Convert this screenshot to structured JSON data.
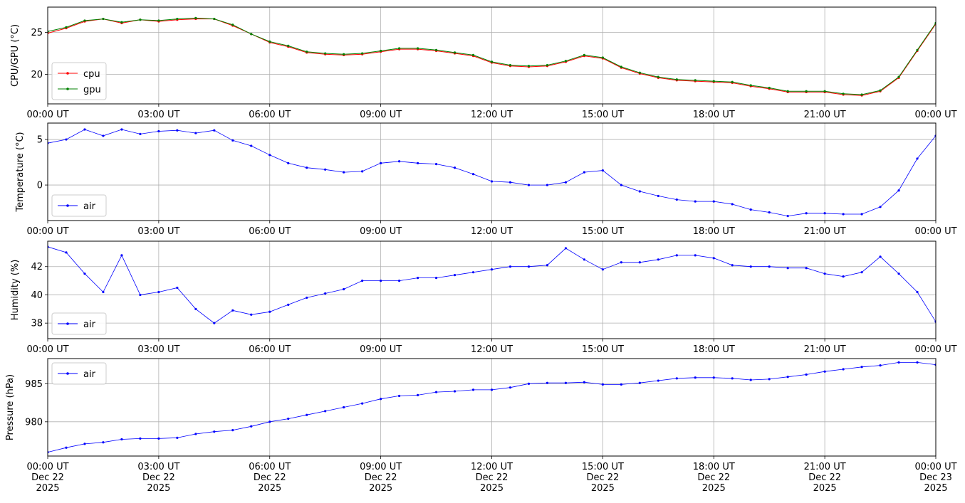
{
  "chart_data": [
    {
      "type": "line",
      "ylabel": "CPU/GPU (°C)",
      "xlim": [
        "2025-12-22 00:00",
        "2025-12-23 00:00"
      ],
      "ylim": [
        16.5,
        28
      ],
      "yticks": [
        20,
        25
      ],
      "x_tick_labels": [
        "00:00 UT",
        "03:00 UT",
        "06:00 UT",
        "09:00 UT",
        "12:00 UT",
        "15:00 UT",
        "18:00 UT",
        "21:00 UT",
        "00:00 UT"
      ],
      "grid": true,
      "legend_position": "lower left",
      "x_hours": [
        0,
        0.5,
        1,
        1.5,
        2,
        2.5,
        3,
        3.5,
        4,
        4.5,
        5,
        5.5,
        6,
        6.5,
        7,
        7.5,
        8,
        8.5,
        9,
        9.5,
        10,
        10.5,
        11,
        11.5,
        12,
        12.5,
        13,
        13.5,
        14,
        14.5,
        15,
        15.5,
        16,
        16.5,
        17,
        17.5,
        18,
        18.5,
        19,
        19.5,
        20,
        20.5,
        21,
        21.5,
        22,
        22.5,
        23,
        23.5,
        24
      ],
      "series": [
        {
          "name": "cpu",
          "color": "#ff0000",
          "values": [
            24.9,
            25.5,
            26.3,
            26.6,
            26.1,
            26.5,
            26.3,
            26.5,
            26.6,
            26.6,
            25.8,
            24.8,
            23.8,
            23.3,
            22.6,
            22.4,
            22.3,
            22.4,
            22.7,
            23.0,
            23.0,
            22.8,
            22.5,
            22.2,
            21.4,
            21.0,
            20.9,
            21.0,
            21.5,
            22.2,
            21.9,
            20.8,
            20.1,
            19.6,
            19.3,
            19.2,
            19.1,
            19.0,
            18.6,
            18.3,
            17.9,
            17.9,
            17.9,
            17.6,
            17.5,
            18.0,
            19.6,
            22.8,
            26.0
          ]
        },
        {
          "name": "gpu",
          "color": "#008000",
          "values": [
            25.1,
            25.6,
            26.4,
            26.6,
            26.2,
            26.5,
            26.4,
            26.6,
            26.7,
            26.6,
            25.9,
            24.8,
            23.9,
            23.4,
            22.7,
            22.5,
            22.4,
            22.5,
            22.8,
            23.1,
            23.1,
            22.9,
            22.6,
            22.3,
            21.5,
            21.1,
            21.0,
            21.1,
            21.6,
            22.3,
            22.0,
            20.9,
            20.2,
            19.7,
            19.4,
            19.3,
            19.2,
            19.1,
            18.7,
            18.4,
            18.0,
            18.0,
            18.0,
            17.7,
            17.6,
            18.1,
            19.7,
            22.9,
            26.1
          ]
        }
      ]
    },
    {
      "type": "line",
      "ylabel": "Temperature (°C)",
      "xlim": [
        "2025-12-22 00:00",
        "2025-12-23 00:00"
      ],
      "ylim": [
        -3.9,
        6.8
      ],
      "yticks": [
        0,
        5
      ],
      "x_tick_labels": [
        "00:00 UT",
        "03:00 UT",
        "06:00 UT",
        "09:00 UT",
        "12:00 UT",
        "15:00 UT",
        "18:00 UT",
        "21:00 UT",
        "00:00 UT"
      ],
      "grid": true,
      "legend_position": "lower left",
      "x_hours": [
        0,
        0.5,
        1,
        1.5,
        2,
        2.5,
        3,
        3.5,
        4,
        4.5,
        5,
        5.5,
        6,
        6.5,
        7,
        7.5,
        8,
        8.5,
        9,
        9.5,
        10,
        10.5,
        11,
        11.5,
        12,
        12.5,
        13,
        13.5,
        14,
        14.5,
        15,
        15.5,
        16,
        16.5,
        17,
        17.5,
        18,
        18.5,
        19,
        19.5,
        20,
        20.5,
        21,
        21.5,
        22,
        22.5,
        23,
        23.5,
        24
      ],
      "series": [
        {
          "name": "air",
          "color": "#0000ff",
          "values": [
            4.6,
            5.0,
            6.1,
            5.4,
            6.1,
            5.6,
            5.9,
            6.0,
            5.7,
            6.0,
            4.9,
            4.3,
            3.3,
            2.4,
            1.9,
            1.7,
            1.4,
            1.5,
            2.4,
            2.6,
            2.4,
            2.3,
            1.9,
            1.2,
            0.4,
            0.3,
            0.0,
            0.0,
            0.3,
            1.4,
            1.6,
            0.0,
            -0.7,
            -1.2,
            -1.6,
            -1.8,
            -1.8,
            -2.1,
            -2.7,
            -3.0,
            -3.4,
            -3.1,
            -3.1,
            -3.2,
            -3.2,
            -2.4,
            -0.6,
            2.9,
            5.4
          ]
        }
      ]
    },
    {
      "type": "line",
      "ylabel": "Humidity (%)",
      "xlim": [
        "2025-12-22 00:00",
        "2025-12-23 00:00"
      ],
      "ylim": [
        36.9,
        43.8
      ],
      "yticks": [
        38,
        40,
        42
      ],
      "x_tick_labels": [
        "00:00 UT",
        "03:00 UT",
        "06:00 UT",
        "09:00 UT",
        "12:00 UT",
        "15:00 UT",
        "18:00 UT",
        "21:00 UT",
        "00:00 UT"
      ],
      "grid": true,
      "legend_position": "lower left",
      "x_hours": [
        0,
        0.5,
        1,
        1.5,
        2,
        2.5,
        3,
        3.5,
        4,
        4.5,
        5,
        5.5,
        6,
        6.5,
        7,
        7.5,
        8,
        8.5,
        9,
        9.5,
        10,
        10.5,
        11,
        11.5,
        12,
        12.5,
        13,
        13.5,
        14,
        14.5,
        15,
        15.5,
        16,
        16.5,
        17,
        17.5,
        18,
        18.5,
        19,
        19.5,
        20,
        20.5,
        21,
        21.5,
        22,
        22.5,
        23,
        23.5,
        24
      ],
      "series": [
        {
          "name": "air",
          "color": "#0000ff",
          "values": [
            43.4,
            43.0,
            41.5,
            40.2,
            42.8,
            40.0,
            40.2,
            40.5,
            39.0,
            38.0,
            38.9,
            38.6,
            38.8,
            39.3,
            39.8,
            40.1,
            40.4,
            41.0,
            41.0,
            41.0,
            41.2,
            41.2,
            41.4,
            41.6,
            41.8,
            42.0,
            42.0,
            42.1,
            43.3,
            42.5,
            41.8,
            42.3,
            42.3,
            42.5,
            42.8,
            42.8,
            42.6,
            42.1,
            42.0,
            42.0,
            41.9,
            41.9,
            41.5,
            41.3,
            41.6,
            42.7,
            41.5,
            40.2,
            38.1
          ]
        }
      ]
    },
    {
      "type": "line",
      "ylabel": "Pressure (hPa)",
      "xlim": [
        "2025-12-22 00:00",
        "2025-12-23 00:00"
      ],
      "ylim": [
        975.5,
        988.3
      ],
      "yticks": [
        980,
        985
      ],
      "x_tick_labels": [
        "00:00 UT\nDec 22\n2025",
        "03:00 UT\nDec 22\n2025",
        "06:00 UT\nDec 22\n2025",
        "09:00 UT\nDec 22\n2025",
        "12:00 UT\nDec 22\n2025",
        "15:00 UT\nDec 22\n2025",
        "18:00 UT\nDec 22\n2025",
        "21:00 UT\nDec 22\n2025",
        "00:00 UT\nDec 23\n2025"
      ],
      "grid": true,
      "legend_position": "upper left",
      "x_hours": [
        0,
        0.5,
        1,
        1.5,
        2,
        2.5,
        3,
        3.5,
        4,
        4.5,
        5,
        5.5,
        6,
        6.5,
        7,
        7.5,
        8,
        8.5,
        9,
        9.5,
        10,
        10.5,
        11,
        11.5,
        12,
        12.5,
        13,
        13.5,
        14,
        14.5,
        15,
        15.5,
        16,
        16.5,
        17,
        17.5,
        18,
        18.5,
        19,
        19.5,
        20,
        20.5,
        21,
        21.5,
        22,
        22.5,
        23,
        23.5,
        24
      ],
      "series": [
        {
          "name": "air",
          "color": "#0000ff",
          "values": [
            976.0,
            976.6,
            977.1,
            977.3,
            977.7,
            977.8,
            977.8,
            977.9,
            978.4,
            978.7,
            978.9,
            979.4,
            980.0,
            980.4,
            980.9,
            981.4,
            981.9,
            982.4,
            983.0,
            983.4,
            983.5,
            983.9,
            984.0,
            984.2,
            984.2,
            984.5,
            985.0,
            985.1,
            985.1,
            985.2,
            984.9,
            984.9,
            985.1,
            985.4,
            985.7,
            985.8,
            985.8,
            985.7,
            985.5,
            985.6,
            985.9,
            986.2,
            986.6,
            986.9,
            987.2,
            987.4,
            987.8,
            987.8,
            987.5
          ]
        }
      ]
    }
  ]
}
